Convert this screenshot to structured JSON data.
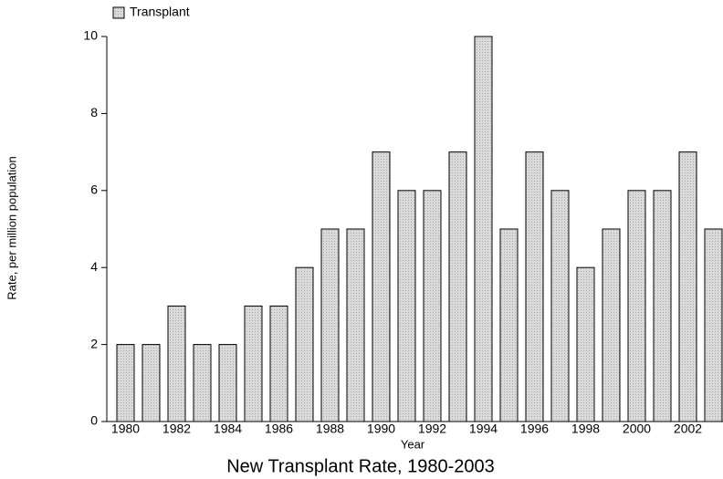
{
  "chart_data": {
    "type": "bar",
    "title": "New Transplant Rate, 1980-2003",
    "x_label": "Year",
    "y_label": "Rate, per million population",
    "categories": [
      "1980",
      null,
      "1982",
      null,
      "1984",
      null,
      "1986",
      null,
      "1988",
      null,
      "1990",
      null,
      "1992",
      null,
      "1994",
      null,
      "1996",
      null,
      "1998",
      null,
      "2000",
      null,
      "2002",
      null
    ],
    "series": [
      {
        "name": "Transplant",
        "color": "#dadada",
        "values": [
          2,
          2,
          3,
          2,
          2,
          3,
          3,
          4,
          5,
          5,
          7,
          6,
          6,
          7,
          10,
          5,
          7,
          6,
          4,
          5,
          6,
          6,
          7,
          5
        ]
      }
    ],
    "ylim": [
      0,
      10
    ],
    "yticks": [
      0,
      2,
      4,
      6,
      8,
      10
    ],
    "grid": false,
    "legend": "top-left"
  }
}
